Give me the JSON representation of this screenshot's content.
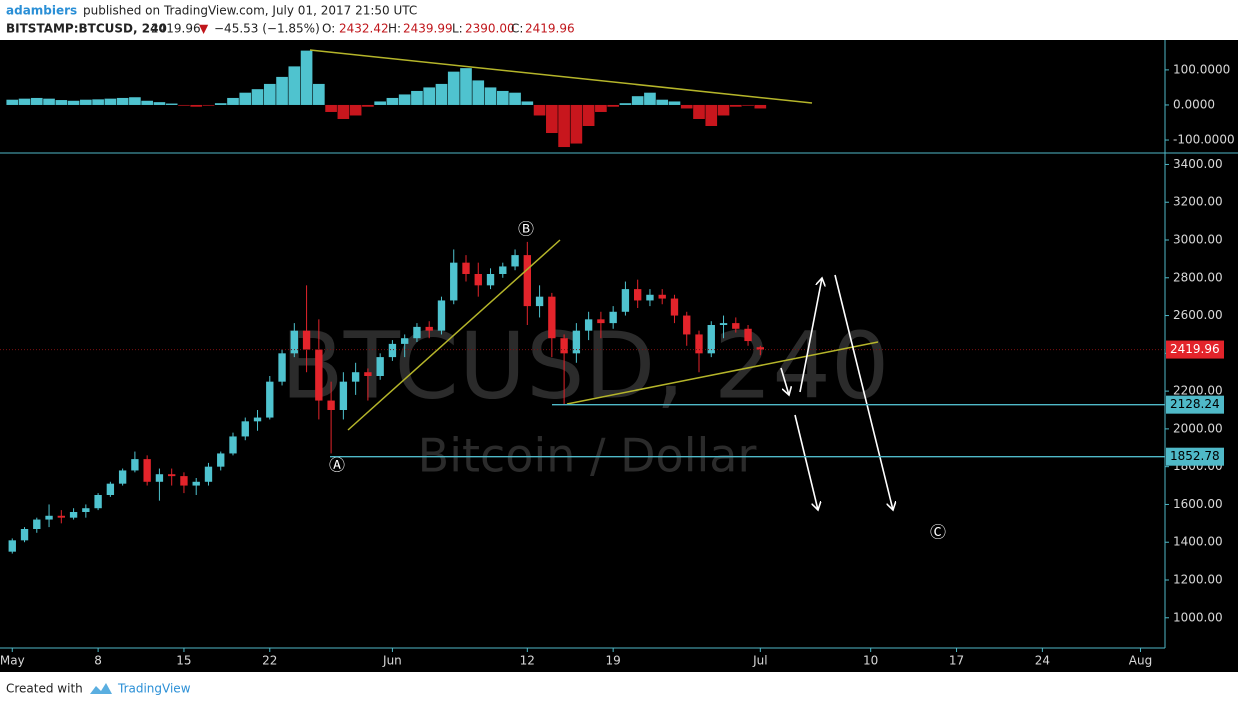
{
  "header": {
    "author": "adambiers",
    "published": "published on TradingView.com, July 01, 2017 21:50 UTC",
    "symbol": "BITSTAMP:BTCUSD, 240",
    "price": "2419.96",
    "arrow": "▼",
    "change": "−45.53 (−1.85%)",
    "o_label": "O:",
    "open": "2432.42",
    "h_label": "H:",
    "high": "2439.99",
    "l_label": "L:",
    "low": "2390.00",
    "c_label": "C:",
    "close": "2419.96"
  },
  "chart_data": [
    {
      "type": "candlestick",
      "watermark": "BTCUSD, 240",
      "watermark_sub": "Bitcoin / Dollar",
      "x": [
        "2017-05-01",
        "2017-05-02",
        "2017-05-03",
        "2017-05-04",
        "2017-05-05",
        "2017-05-06",
        "2017-05-07",
        "2017-05-08",
        "2017-05-09",
        "2017-05-10",
        "2017-05-11",
        "2017-05-12",
        "2017-05-13",
        "2017-05-14",
        "2017-05-15",
        "2017-05-16",
        "2017-05-17",
        "2017-05-18",
        "2017-05-19",
        "2017-05-20",
        "2017-05-21",
        "2017-05-22",
        "2017-05-23",
        "2017-05-24",
        "2017-05-25",
        "2017-05-26",
        "2017-05-27",
        "2017-05-28",
        "2017-05-29",
        "2017-05-30",
        "2017-05-31",
        "2017-06-01",
        "2017-06-02",
        "2017-06-03",
        "2017-06-04",
        "2017-06-05",
        "2017-06-06",
        "2017-06-07",
        "2017-06-08",
        "2017-06-09",
        "2017-06-10",
        "2017-06-11",
        "2017-06-12",
        "2017-06-13",
        "2017-06-14",
        "2017-06-15",
        "2017-06-16",
        "2017-06-17",
        "2017-06-18",
        "2017-06-19",
        "2017-06-20",
        "2017-06-21",
        "2017-06-22",
        "2017-06-23",
        "2017-06-24",
        "2017-06-25",
        "2017-06-26",
        "2017-06-27",
        "2017-06-28",
        "2017-06-29",
        "2017-06-30",
        "2017-07-01"
      ],
      "open": [
        1350,
        1410,
        1470,
        1520,
        1540,
        1530,
        1560,
        1580,
        1650,
        1710,
        1780,
        1840,
        1720,
        1760,
        1750,
        1700,
        1720,
        1800,
        1870,
        1960,
        2040,
        2060,
        2250,
        2400,
        2520,
        2420,
        2150,
        2100,
        2250,
        2300,
        2280,
        2380,
        2450,
        2480,
        2540,
        2520,
        2680,
        2880,
        2820,
        2760,
        2820,
        2860,
        2920,
        2650,
        2700,
        2480,
        2400,
        2520,
        2580,
        2560,
        2620,
        2740,
        2680,
        2710,
        2690,
        2600,
        2500,
        2400,
        2550,
        2560,
        2530,
        2432.42
      ],
      "high": [
        1420,
        1480,
        1530,
        1600,
        1570,
        1580,
        1600,
        1660,
        1720,
        1790,
        1880,
        1860,
        1790,
        1790,
        1770,
        1740,
        1820,
        1880,
        1980,
        2060,
        2100,
        2280,
        2420,
        2560,
        2760,
        2580,
        2250,
        2300,
        2350,
        2320,
        2400,
        2470,
        2500,
        2560,
        2570,
        2700,
        2950,
        2920,
        2880,
        2850,
        2880,
        2950,
        2990,
        2760,
        2720,
        2500,
        2560,
        2620,
        2620,
        2650,
        2780,
        2790,
        2740,
        2740,
        2710,
        2620,
        2520,
        2570,
        2600,
        2590,
        2550,
        2439.99
      ],
      "low": [
        1340,
        1400,
        1450,
        1480,
        1500,
        1520,
        1530,
        1570,
        1640,
        1700,
        1770,
        1700,
        1620,
        1700,
        1660,
        1650,
        1700,
        1780,
        1860,
        1940,
        1990,
        2050,
        2230,
        2380,
        2300,
        2050,
        1870,
        2050,
        2180,
        2150,
        2260,
        2360,
        2380,
        2460,
        2480,
        2500,
        2660,
        2780,
        2700,
        2740,
        2800,
        2840,
        2550,
        2590,
        2380,
        2130,
        2350,
        2470,
        2480,
        2530,
        2600,
        2640,
        2650,
        2660,
        2560,
        2440,
        2300,
        2380,
        2480,
        2510,
        2440,
        2390
      ],
      "close": [
        1410,
        1470,
        1520,
        1540,
        1530,
        1560,
        1580,
        1650,
        1710,
        1780,
        1840,
        1720,
        1760,
        1750,
        1700,
        1720,
        1800,
        1870,
        1960,
        2040,
        2060,
        2250,
        2400,
        2520,
        2420,
        2150,
        2100,
        2250,
        2300,
        2280,
        2380,
        2450,
        2480,
        2540,
        2520,
        2680,
        2880,
        2820,
        2760,
        2820,
        2860,
        2920,
        2650,
        2700,
        2480,
        2400,
        2520,
        2580,
        2560,
        2620,
        2740,
        2680,
        2710,
        2690,
        2600,
        2500,
        2400,
        2550,
        2560,
        2530,
        2465,
        2419.96
      ],
      "up_color": "#4fc3cf",
      "down_color": "#e3242b",
      "xlim": [
        "2017-04-30",
        "2017-08-03"
      ],
      "xticks": [
        {
          "value": "2017-05-01",
          "label": "May"
        },
        {
          "value": "2017-05-08",
          "label": "8"
        },
        {
          "value": "2017-05-15",
          "label": "15"
        },
        {
          "value": "2017-05-22",
          "label": "22"
        },
        {
          "value": "2017-06-01",
          "label": "Jun"
        },
        {
          "value": "2017-06-12",
          "label": "12"
        },
        {
          "value": "2017-06-19",
          "label": "19"
        },
        {
          "value": "2017-07-01",
          "label": "Jul"
        },
        {
          "value": "2017-07-10",
          "label": "10"
        },
        {
          "value": "2017-07-17",
          "label": "17"
        },
        {
          "value": "2017-07-24",
          "label": "24"
        },
        {
          "value": "2017-08-01",
          "label": "Aug"
        }
      ],
      "ylim": [
        840,
        3450
      ],
      "yticks": [
        {
          "value": 1000,
          "label": "1000.00"
        },
        {
          "value": 1200,
          "label": "1200.00"
        },
        {
          "value": 1400,
          "label": "1400.00"
        },
        {
          "value": 1600,
          "label": "1600.00"
        },
        {
          "value": 1800,
          "label": "1800.00"
        },
        {
          "value": 2000,
          "label": "2000.00"
        },
        {
          "value": 2200,
          "label": "2200.00"
        },
        {
          "value": 2400,
          "label": "2400.00"
        },
        {
          "value": 2600,
          "label": "2600.00"
        },
        {
          "value": 2800,
          "label": "2800.00"
        },
        {
          "value": 3000,
          "label": "3000.00"
        },
        {
          "value": 3200,
          "label": "3200.00"
        },
        {
          "value": 3400,
          "label": "3400.00"
        }
      ],
      "last_price": 2419.96,
      "levels": [
        2128.24,
        1852.78
      ],
      "annotations": [
        "Ⓐ",
        "Ⓑ",
        "Ⓒ"
      ]
    },
    {
      "type": "bar",
      "values": [
        15,
        18,
        20,
        18,
        14,
        12,
        15,
        16,
        18,
        20,
        22,
        12,
        8,
        4,
        -2,
        -5,
        -2,
        5,
        20,
        35,
        45,
        60,
        80,
        110,
        155,
        60,
        -20,
        -40,
        -30,
        -5,
        10,
        20,
        30,
        40,
        50,
        60,
        95,
        105,
        70,
        50,
        40,
        35,
        10,
        -30,
        -80,
        -120,
        -110,
        -60,
        -20,
        -5,
        5,
        25,
        35,
        15,
        10,
        -10,
        -40,
        -60,
        -30,
        -5,
        -2,
        -10
      ],
      "up_color": "#4fc3cf",
      "down_color": "#c8161d",
      "ylim": [
        -137,
        171
      ],
      "yticks": [
        {
          "value": 100,
          "label": "100.0000"
        },
        {
          "value": 0,
          "label": "0.0000"
        },
        {
          "value": -100,
          "label": "-100.0000"
        }
      ]
    }
  ],
  "footer": {
    "created": "Created with",
    "brand": "TradingView"
  }
}
